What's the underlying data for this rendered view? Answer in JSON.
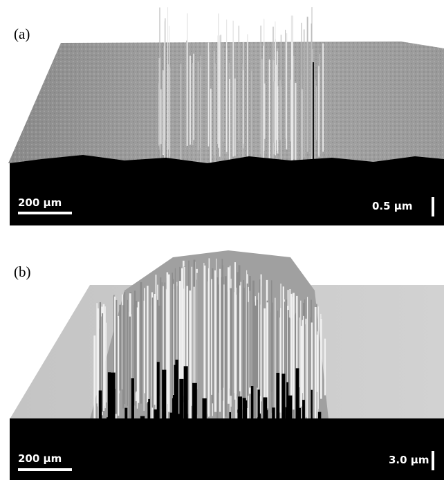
{
  "panels": [
    {
      "label": "(a)",
      "scale_bar": "200 µm",
      "height_bar": "0.5 µm"
    },
    {
      "label": "(b)",
      "scale_bar": "200 µm",
      "height_bar": "3.0 µm"
    }
  ]
}
